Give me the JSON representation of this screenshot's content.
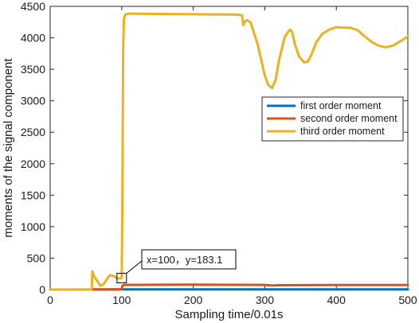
{
  "chart_data": {
    "type": "line",
    "title": "",
    "xlabel": "Sampling time/0.01s",
    "ylabel": "moments of the signal component",
    "xlim": [
      0,
      500
    ],
    "ylim": [
      0,
      4500
    ],
    "xticks": [
      0,
      100,
      200,
      300,
      400,
      500
    ],
    "yticks": [
      0,
      500,
      1000,
      1500,
      2000,
      2500,
      3000,
      3500,
      4000,
      4500
    ],
    "grid": false,
    "legend_position": "center-right",
    "series": [
      {
        "name": "first order moment",
        "color": "#0072BD",
        "x": [
          0,
          100,
          200,
          300,
          400,
          500
        ],
        "y": [
          0,
          2,
          2,
          2,
          2,
          2
        ]
      },
      {
        "name": "second order moment",
        "color": "#D95319",
        "x": [
          0,
          58,
          60,
          100,
          101,
          103,
          200,
          300,
          310,
          320,
          400,
          500
        ],
        "y": [
          0,
          0,
          3,
          5,
          60,
          75,
          78,
          75,
          65,
          70,
          72,
          72
        ]
      },
      {
        "name": "third order moment",
        "color": "#EDB120",
        "x": [
          0,
          58,
          59,
          61,
          65,
          70,
          75,
          80,
          84,
          88,
          92,
          96,
          98,
          100,
          101,
          102,
          103,
          105,
          110,
          150,
          200,
          260,
          268,
          270,
          272,
          275,
          280,
          290,
          300,
          305,
          310,
          315,
          320,
          328,
          335,
          338,
          342,
          348,
          355,
          360,
          365,
          372,
          380,
          390,
          400,
          410,
          420,
          430,
          440,
          450,
          460,
          470,
          480,
          490,
          500
        ],
        "y": [
          0,
          0,
          290,
          220,
          150,
          60,
          90,
          180,
          230,
          220,
          190,
          175,
          180,
          183.1,
          1500,
          3800,
          4300,
          4370,
          4385,
          4380,
          4375,
          4370,
          4360,
          4200,
          4260,
          4280,
          4250,
          3900,
          3400,
          3250,
          3200,
          3330,
          3650,
          4020,
          4130,
          4100,
          3900,
          3700,
          3610,
          3620,
          3730,
          3930,
          4060,
          4130,
          4170,
          4160,
          4160,
          4120,
          4020,
          3930,
          3870,
          3850,
          3880,
          3950,
          4020
        ]
      }
    ],
    "annotations": [
      {
        "text": "x=100，y=183.1",
        "x": 100,
        "y": 183.1
      }
    ]
  }
}
